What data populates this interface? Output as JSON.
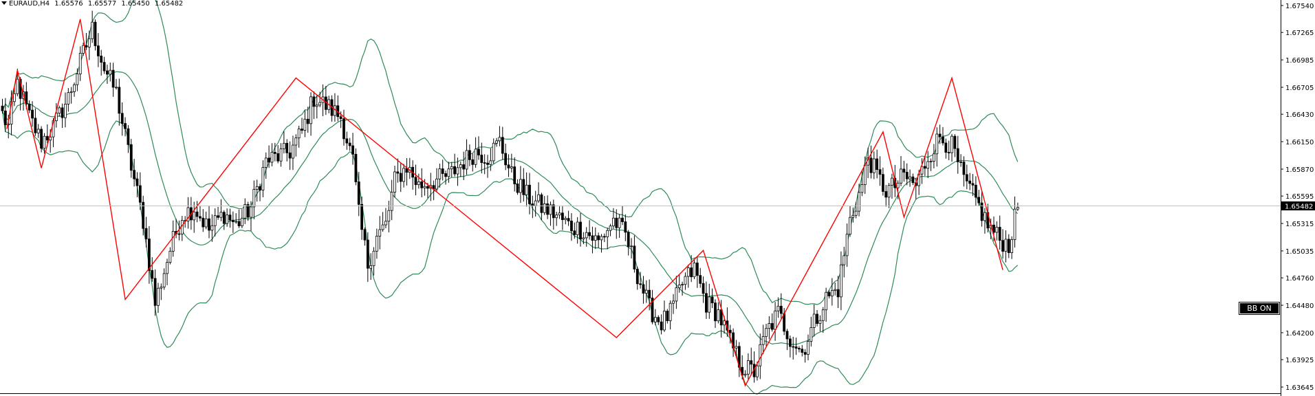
{
  "header": {
    "symbol": "EURAUD,H4",
    "open": "1.65576",
    "high": "1.65577",
    "low": "1.65450",
    "close": "1.65482"
  },
  "badge": {
    "label": "BB ON"
  },
  "colors": {
    "background": "#ffffff",
    "candle": "#000000",
    "bollinger": "#2e8b57",
    "zigzag": "#ff0000",
    "price_line": "#c0c0c0",
    "axis_text": "#000000",
    "price_tag_bg": "#000000",
    "price_tag_text": "#ffffff"
  },
  "chart_data": {
    "type": "candlestick",
    "symbol": "EURAUD",
    "timeframe": "H4",
    "y_ticks": [
      "1.67540",
      "1.67265",
      "1.66985",
      "1.66705",
      "1.66430",
      "1.66150",
      "1.65870",
      "1.65595",
      "1.65315",
      "1.65035",
      "1.64760",
      "1.64480",
      "1.64200",
      "1.63925",
      "1.63645"
    ],
    "y_range": [
      1.6357,
      1.6762
    ],
    "current_price": "1.65482",
    "candle_count": 160,
    "close_path": [
      [
        0,
        1.6643
      ],
      [
        2,
        1.663
      ],
      [
        5,
        1.6675
      ],
      [
        9,
        1.664
      ],
      [
        13,
        1.6615
      ],
      [
        17,
        1.663
      ],
      [
        22,
        1.666
      ],
      [
        27,
        1.6705
      ],
      [
        30,
        1.673
      ],
      [
        34,
        1.669
      ],
      [
        38,
        1.6665
      ],
      [
        43,
        1.659
      ],
      [
        47,
        1.6535
      ],
      [
        51,
        1.645
      ],
      [
        56,
        1.6505
      ],
      [
        60,
        1.654
      ],
      [
        64,
        1.6548
      ],
      [
        69,
        1.6525
      ],
      [
        74,
        1.6542
      ],
      [
        78,
        1.653
      ],
      [
        83,
        1.6548
      ],
      [
        88,
        1.6595
      ],
      [
        92,
        1.66
      ],
      [
        96,
        1.6605
      ],
      [
        100,
        1.6625
      ],
      [
        104,
        1.666
      ],
      [
        109,
        1.665
      ],
      [
        113,
        1.664
      ],
      [
        117,
        1.6595
      ],
      [
        119,
        1.654
      ],
      [
        122,
        1.649
      ],
      [
        125,
        1.6518
      ],
      [
        128,
        1.653
      ],
      [
        131,
        1.6575
      ],
      [
        135,
        1.659
      ],
      [
        139,
        1.657
      ],
      [
        144,
        1.6575
      ],
      [
        149,
        1.658
      ],
      [
        154,
        1.6595
      ],
      [
        158,
        1.6605
      ],
      [
        162,
        1.66
      ],
      [
        166,
        1.6615
      ],
      [
        170,
        1.658
      ],
      [
        175,
        1.656
      ],
      [
        180,
        1.6548
      ],
      [
        184,
        1.6542
      ],
      [
        189,
        1.653
      ],
      [
        194,
        1.6525
      ],
      [
        199,
        1.6512
      ],
      [
        204,
        1.6535
      ],
      [
        208,
        1.652
      ],
      [
        212,
        1.648
      ],
      [
        216,
        1.6445
      ],
      [
        220,
        1.643
      ],
      [
        223,
        1.644
      ],
      [
        227,
        1.647
      ],
      [
        231,
        1.6485
      ],
      [
        235,
        1.645
      ],
      [
        239,
        1.644
      ],
      [
        243,
        1.641
      ],
      [
        247,
        1.6385
      ],
      [
        251,
        1.638
      ],
      [
        255,
        1.642
      ],
      [
        259,
        1.644
      ],
      [
        263,
        1.6415
      ],
      [
        267,
        1.64
      ],
      [
        271,
        1.643
      ],
      [
        275,
        1.6455
      ],
      [
        279,
        1.6465
      ],
      [
        283,
        1.6535
      ],
      [
        287,
        1.657
      ],
      [
        289,
        1.66
      ],
      [
        292,
        1.658
      ],
      [
        295,
        1.6565
      ],
      [
        298,
        1.657
      ],
      [
        301,
        1.658
      ],
      [
        305,
        1.657
      ],
      [
        309,
        1.66
      ],
      [
        313,
        1.662
      ],
      [
        317,
        1.661
      ],
      [
        321,
        1.6575
      ],
      [
        325,
        1.6555
      ],
      [
        329,
        1.653
      ],
      [
        333,
        1.6515
      ],
      [
        336,
        1.651
      ],
      [
        339,
        1.6548
      ]
    ],
    "zigzag_points": [
      [
        1.5,
        1.6628
      ],
      [
        5,
        1.6688
      ],
      [
        13,
        1.6588
      ],
      [
        26,
        1.674
      ],
      [
        41,
        1.6454
      ],
      [
        98,
        1.668
      ],
      [
        205,
        1.6415
      ],
      [
        234,
        1.6504
      ],
      [
        248,
        1.6366
      ],
      [
        294,
        1.6625
      ],
      [
        301,
        1.6538
      ],
      [
        317,
        1.668
      ],
      [
        334,
        1.6484
      ]
    ],
    "indicators": [
      "Bollinger Bands",
      "ZigZag"
    ]
  }
}
